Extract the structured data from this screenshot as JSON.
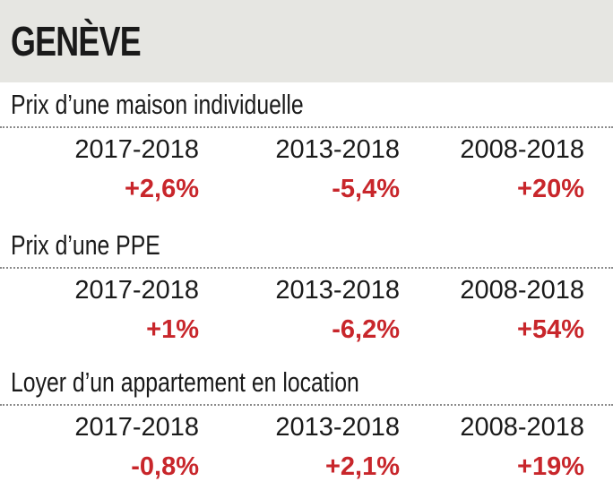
{
  "header": {
    "title": "GENÈVE"
  },
  "sections": [
    {
      "title": "Prix d’une maison individuelle",
      "columns": [
        {
          "period": "2017-2018",
          "value": "+2,6%"
        },
        {
          "period": "2013-2018",
          "value": "-5,4%"
        },
        {
          "period": "2008-2018",
          "value": "+20%"
        }
      ]
    },
    {
      "title": "Prix d’une PPE",
      "columns": [
        {
          "period": "2017-2018",
          "value": "+1%"
        },
        {
          "period": "2013-2018",
          "value": "-6,2%"
        },
        {
          "period": "2008-2018",
          "value": "+54%"
        }
      ]
    },
    {
      "title": "Loyer d’un appartement en location",
      "columns": [
        {
          "period": "2017-2018",
          "value": "-0,8%"
        },
        {
          "period": "2013-2018",
          "value": "+2,1%"
        },
        {
          "period": "2008-2018",
          "value": "+19%"
        }
      ]
    }
  ],
  "colors": {
    "header_bg": "#e6e6e2",
    "value_red": "#c8262b",
    "text": "#1a1a1a"
  }
}
